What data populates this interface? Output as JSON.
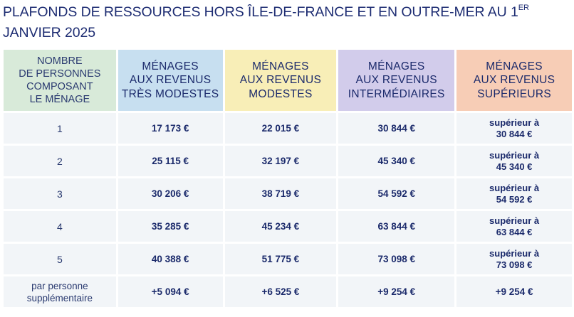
{
  "title": {
    "line1": "PLAFONDS DE RESSOURCES HORS ÎLE-DE-FRANCE ET EN OUTRE-MER AU 1",
    "superscript": "ER",
    "line2": "JANVIER 2025"
  },
  "table": {
    "headers": [
      [
        "NOMBRE",
        "DE PERSONNES",
        "COMPOSANT",
        "LE MÉNAGE"
      ],
      [
        "MÉNAGES",
        "AUX REVENUS",
        "TRÈS MODESTES"
      ],
      [
        "MÉNAGES",
        "AUX REVENUS",
        "MODESTES"
      ],
      [
        "MÉNAGES",
        "AUX REVENUS",
        "INTERMÉDIAIRES"
      ],
      [
        "MÉNAGES",
        "AUX REVENUS",
        "SUPÉRIEURS"
      ]
    ],
    "header_colors": [
      "#d8ead9",
      "#c7dff0",
      "#f8eeb7",
      "#d2cceb",
      "#f7cdb6"
    ],
    "rows": [
      {
        "persons": "1",
        "tres_modestes": "17 173 €",
        "modestes": "22 015 €",
        "intermediaires": "30 844 €",
        "superieurs_prefix": "supérieur à",
        "superieurs": "30 844 €"
      },
      {
        "persons": "2",
        "tres_modestes": "25 115 €",
        "modestes": "32 197 €",
        "intermediaires": "45 340 €",
        "superieurs_prefix": "supérieur à",
        "superieurs": "45 340 €"
      },
      {
        "persons": "3",
        "tres_modestes": "30 206 €",
        "modestes": "38 719 €",
        "intermediaires": "54 592 €",
        "superieurs_prefix": "supérieur à",
        "superieurs": "54 592 €"
      },
      {
        "persons": "4",
        "tres_modestes": "35 285 €",
        "modestes": "45 234 €",
        "intermediaires": "63 844 €",
        "superieurs_prefix": "supérieur à",
        "superieurs": "63 844 €"
      },
      {
        "persons": "5",
        "tres_modestes": "40 388 €",
        "modestes": "51 775 €",
        "intermediaires": "73 098 €",
        "superieurs_prefix": "supérieur à",
        "superieurs": "73 098 €"
      }
    ],
    "extra_row": {
      "label_line1": "par personne",
      "label_line2": "supplémentaire",
      "tres_modestes": "+5 094 €",
      "modestes": "+6 525 €",
      "intermediaires": "+9 254 €",
      "superieurs": "+9 254 €"
    }
  }
}
